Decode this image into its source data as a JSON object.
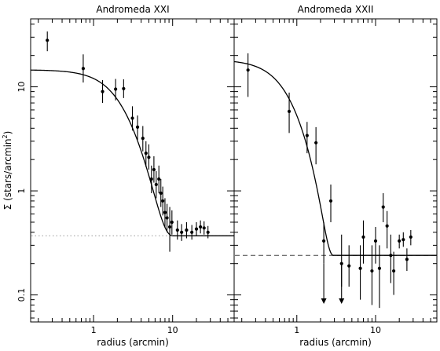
{
  "chart_data": [
    {
      "type": "scatter",
      "title": "Andromeda XXI",
      "xlabel": "radius (arcmin)",
      "ylabel_main": "Σ (stars/arcmin",
      "ylabel_sup": "2",
      "ylabel_close": ")",
      "xscale": "log",
      "yscale": "log",
      "xlim": [
        0.16,
        60
      ],
      "ylim": [
        0.055,
        45
      ],
      "x_ticks": [
        {
          "value": 1,
          "label": "1"
        },
        {
          "value": 10,
          "label": "10"
        }
      ],
      "y_ticks": [
        {
          "value": 0.1,
          "label": "0.1"
        },
        {
          "value": 1,
          "label": "1"
        },
        {
          "value": 10,
          "label": "10"
        }
      ],
      "background_level": 0.37,
      "background_style": "dotted",
      "model": {
        "type": "king",
        "s0": 14.2,
        "rc": 2.5,
        "rt": 10.0,
        "bg": 0.37
      },
      "points": [
        {
          "x": 0.26,
          "y": 28.0,
          "lo": 22.0,
          "hi": 34.0
        },
        {
          "x": 0.74,
          "y": 15.0,
          "lo": 11.0,
          "hi": 20.5
        },
        {
          "x": 1.3,
          "y": 9.0,
          "lo": 7.0,
          "hi": 11.6
        },
        {
          "x": 1.9,
          "y": 9.5,
          "lo": 7.4,
          "hi": 11.9
        },
        {
          "x": 2.4,
          "y": 9.6,
          "lo": 7.8,
          "hi": 11.8
        },
        {
          "x": 3.1,
          "y": 5.0,
          "lo": 3.8,
          "hi": 6.5
        },
        {
          "x": 3.6,
          "y": 4.1,
          "lo": 3.1,
          "hi": 5.3
        },
        {
          "x": 4.2,
          "y": 3.2,
          "lo": 2.4,
          "hi": 4.2
        },
        {
          "x": 4.6,
          "y": 2.3,
          "lo": 1.7,
          "hi": 3.0
        },
        {
          "x": 5.0,
          "y": 2.1,
          "lo": 1.6,
          "hi": 2.8
        },
        {
          "x": 5.4,
          "y": 1.3,
          "lo": 0.95,
          "hi": 1.75
        },
        {
          "x": 5.8,
          "y": 1.6,
          "lo": 1.2,
          "hi": 2.15
        },
        {
          "x": 6.2,
          "y": 1.15,
          "lo": 0.85,
          "hi": 1.55
        },
        {
          "x": 6.7,
          "y": 1.3,
          "lo": 0.95,
          "hi": 1.75
        },
        {
          "x": 7.1,
          "y": 0.95,
          "lo": 0.7,
          "hi": 1.3
        },
        {
          "x": 7.5,
          "y": 0.8,
          "lo": 0.58,
          "hi": 1.1
        },
        {
          "x": 8.0,
          "y": 0.62,
          "lo": 0.45,
          "hi": 0.85
        },
        {
          "x": 8.5,
          "y": 0.55,
          "lo": 0.4,
          "hi": 0.75
        },
        {
          "x": 9.2,
          "y": 0.45,
          "lo": 0.26,
          "hi": 0.7
        },
        {
          "x": 9.8,
          "y": 0.5,
          "lo": 0.38,
          "hi": 0.65
        },
        {
          "x": 11.5,
          "y": 0.42,
          "lo": 0.34,
          "hi": 0.52
        },
        {
          "x": 13.0,
          "y": 0.4,
          "lo": 0.33,
          "hi": 0.48
        },
        {
          "x": 15.0,
          "y": 0.42,
          "lo": 0.35,
          "hi": 0.5
        },
        {
          "x": 17.5,
          "y": 0.4,
          "lo": 0.34,
          "hi": 0.47
        },
        {
          "x": 20.0,
          "y": 0.43,
          "lo": 0.37,
          "hi": 0.5
        },
        {
          "x": 22.5,
          "y": 0.45,
          "lo": 0.39,
          "hi": 0.52
        },
        {
          "x": 25.0,
          "y": 0.44,
          "lo": 0.38,
          "hi": 0.51
        },
        {
          "x": 28.0,
          "y": 0.4,
          "lo": 0.35,
          "hi": 0.46
        }
      ],
      "upper_limits": []
    },
    {
      "type": "scatter",
      "title": "Andromeda XXII",
      "xlabel": "radius (arcmin)",
      "xscale": "log",
      "yscale": "log",
      "xlim": [
        0.16,
        60
      ],
      "ylim": [
        0.055,
        45
      ],
      "x_ticks": [
        {
          "value": 1,
          "label": "1"
        },
        {
          "value": 10,
          "label": "10"
        }
      ],
      "background_level": 0.24,
      "background_style": "dashed",
      "model": {
        "type": "king",
        "s0": 18.0,
        "rc": 0.9,
        "rt": 2.9,
        "bg": 0.24
      },
      "points": [
        {
          "x": 0.24,
          "y": 14.5,
          "lo": 8.0,
          "hi": 21.0
        },
        {
          "x": 0.8,
          "y": 5.8,
          "lo": 3.6,
          "hi": 8.8
        },
        {
          "x": 1.35,
          "y": 3.4,
          "lo": 2.3,
          "hi": 4.6
        },
        {
          "x": 1.75,
          "y": 2.9,
          "lo": 1.8,
          "hi": 4.1
        },
        {
          "x": 2.2,
          "y": 0.33,
          "lo": 0.2,
          "hi": 0.5
        },
        {
          "x": 2.7,
          "y": 0.8,
          "lo": 0.5,
          "hi": 1.15
        },
        {
          "x": 3.7,
          "y": 0.2,
          "lo": 0.12,
          "hi": 0.38
        },
        {
          "x": 4.6,
          "y": 0.19,
          "lo": 0.12,
          "hi": 0.3
        },
        {
          "x": 6.4,
          "y": 0.18,
          "lo": 0.09,
          "hi": 0.3
        },
        {
          "x": 7.0,
          "y": 0.36,
          "lo": 0.2,
          "hi": 0.52
        },
        {
          "x": 9.0,
          "y": 0.17,
          "lo": 0.08,
          "hi": 0.3
        },
        {
          "x": 10.0,
          "y": 0.33,
          "lo": 0.2,
          "hi": 0.45
        },
        {
          "x": 11.2,
          "y": 0.18,
          "lo": 0.075,
          "hi": 0.3
        },
        {
          "x": 12.5,
          "y": 0.7,
          "lo": 0.5,
          "hi": 0.95
        },
        {
          "x": 14.0,
          "y": 0.46,
          "lo": 0.28,
          "hi": 0.64
        },
        {
          "x": 15.6,
          "y": 0.24,
          "lo": 0.13,
          "hi": 0.38
        },
        {
          "x": 17.0,
          "y": 0.17,
          "lo": 0.1,
          "hi": 0.26
        },
        {
          "x": 20.0,
          "y": 0.33,
          "lo": 0.28,
          "hi": 0.38
        },
        {
          "x": 22.5,
          "y": 0.34,
          "lo": 0.29,
          "hi": 0.4
        },
        {
          "x": 25.0,
          "y": 0.22,
          "lo": 0.17,
          "hi": 0.28
        },
        {
          "x": 28.0,
          "y": 0.36,
          "lo": 0.3,
          "hi": 0.42
        }
      ],
      "upper_limits": [
        {
          "x": 2.2,
          "top": 0.2,
          "bottom": 0.082
        },
        {
          "x": 3.7,
          "top": 0.2,
          "bottom": 0.082
        }
      ]
    }
  ]
}
